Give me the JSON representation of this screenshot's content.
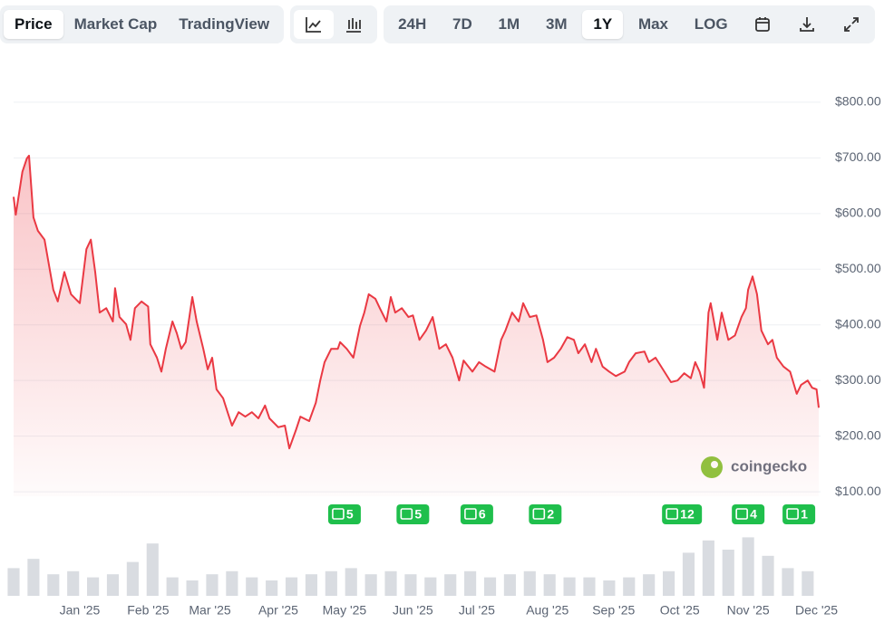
{
  "toolbar": {
    "views": [
      "Price",
      "Market Cap",
      "TradingView"
    ],
    "active_view": 0,
    "ranges": [
      "24H",
      "7D",
      "1M",
      "3M",
      "1Y",
      "Max",
      "LOG"
    ],
    "active_range": 4
  },
  "watermark": "coingecko",
  "chart_data": {
    "type": "line",
    "color": "#ea3943",
    "x": [
      0,
      1,
      4,
      6,
      7,
      9,
      11,
      14,
      18,
      20,
      23,
      26,
      30,
      33,
      35,
      37,
      39,
      42,
      45,
      46,
      48,
      51,
      53,
      55,
      58,
      61,
      62,
      65,
      67,
      69,
      72,
      74,
      76,
      78,
      81,
      83,
      86,
      88,
      90,
      92,
      95,
      97,
      99,
      102,
      105,
      108,
      111,
      114,
      116,
      120,
      123,
      125,
      128,
      130,
      134,
      137,
      139,
      141,
      144,
      147,
      148,
      151,
      154,
      157,
      159,
      161,
      164,
      166,
      169,
      171,
      173,
      176,
      179,
      181,
      184,
      187,
      190,
      193,
      196,
      199,
      202,
      204,
      208,
      211,
      214,
      218,
      221,
      223,
      226,
      229,
      231,
      234,
      237,
      240,
      242,
      245,
      248,
      251,
      254,
      256,
      259,
      262,
      264,
      267,
      270,
      273,
      277,
      279,
      282,
      286,
      288,
      291,
      295,
      298,
      301,
      304,
      307,
      309,
      311,
      313,
      315,
      316,
      319,
      321,
      324,
      327,
      330,
      332,
      333,
      335,
      337,
      339,
      342,
      344,
      346,
      349,
      352,
      355,
      357,
      360,
      362,
      364,
      365
    ],
    "values": [
      630,
      598,
      675,
      699,
      704,
      593,
      569,
      553,
      463,
      442,
      495,
      455,
      439,
      536,
      553,
      495,
      422,
      430,
      406,
      466,
      414,
      401,
      373,
      430,
      442,
      433,
      365,
      341,
      316,
      357,
      406,
      385,
      357,
      369,
      450,
      406,
      357,
      320,
      341,
      284,
      268,
      243,
      219,
      243,
      235,
      243,
      232,
      255,
      232,
      216,
      219,
      178,
      211,
      235,
      227,
      260,
      300,
      333,
      357,
      357,
      369,
      357,
      341,
      398,
      422,
      455,
      447,
      430,
      406,
      450,
      422,
      430,
      414,
      417,
      373,
      390,
      414,
      357,
      365,
      341,
      300,
      336,
      316,
      333,
      325,
      316,
      373,
      390,
      422,
      406,
      439,
      414,
      417,
      373,
      333,
      341,
      357,
      378,
      373,
      349,
      365,
      333,
      357,
      325,
      316,
      308,
      316,
      333,
      349,
      352,
      333,
      341,
      316,
      297,
      300,
      313,
      304,
      333,
      316,
      287,
      422,
      439,
      373,
      422,
      373,
      381,
      414,
      430,
      463,
      487,
      455,
      390,
      365,
      373,
      341,
      325,
      316,
      276,
      292,
      300,
      287,
      284,
      251
    ],
    "xlim": [
      0,
      365
    ],
    "xticks": [
      {
        "value": 30,
        "label": "Jan '25"
      },
      {
        "value": 61,
        "label": "Feb '25"
      },
      {
        "value": 89,
        "label": "Mar '25"
      },
      {
        "value": 120,
        "label": "Apr '25"
      },
      {
        "value": 150,
        "label": "May '25"
      },
      {
        "value": 181,
        "label": "Jun '25"
      },
      {
        "value": 210,
        "label": "Jul '25"
      },
      {
        "value": 242,
        "label": "Aug '25"
      },
      {
        "value": 272,
        "label": "Sep '25"
      },
      {
        "value": 302,
        "label": "Oct '25"
      },
      {
        "value": 333,
        "label": "Nov '25"
      },
      {
        "value": 364,
        "label": "Dec '25"
      }
    ],
    "ylim": [
      92,
      878
    ],
    "yticks": [
      {
        "value": 100,
        "label": "$100.00"
      },
      {
        "value": 200,
        "label": "$200.00"
      },
      {
        "value": 300,
        "label": "$300.00"
      },
      {
        "value": 400,
        "label": "$400.00"
      },
      {
        "value": 500,
        "label": "$500.00"
      },
      {
        "value": 600,
        "label": "$600.00"
      },
      {
        "value": 700,
        "label": "$700.00"
      },
      {
        "value": 800,
        "label": "$800.00"
      }
    ],
    "grid": true,
    "volume": {
      "color": "#d9dce1",
      "ylim": [
        0,
        100
      ],
      "x": [
        0,
        9,
        18,
        27,
        36,
        45,
        54,
        63,
        72,
        81,
        90,
        99,
        108,
        117,
        126,
        135,
        144,
        153,
        162,
        171,
        180,
        189,
        198,
        207,
        216,
        225,
        234,
        243,
        252,
        261,
        270,
        279,
        288,
        297,
        306,
        315,
        324,
        333,
        342,
        351,
        360
      ],
      "values": [
        45,
        60,
        35,
        40,
        30,
        35,
        55,
        85,
        30,
        25,
        35,
        40,
        30,
        25,
        30,
        35,
        40,
        45,
        35,
        40,
        35,
        30,
        35,
        40,
        30,
        35,
        40,
        35,
        30,
        30,
        25,
        30,
        35,
        40,
        70,
        90,
        75,
        95,
        65,
        45,
        40
      ]
    },
    "news": {
      "color": "#1fbf4c",
      "items": [
        {
          "x": 150,
          "count": 5
        },
        {
          "x": 181,
          "count": 5
        },
        {
          "x": 210,
          "count": 6
        },
        {
          "x": 241,
          "count": 2
        },
        {
          "x": 303,
          "count": 12
        },
        {
          "x": 333,
          "count": 4
        },
        {
          "x": 356,
          "count": 1
        }
      ]
    }
  }
}
